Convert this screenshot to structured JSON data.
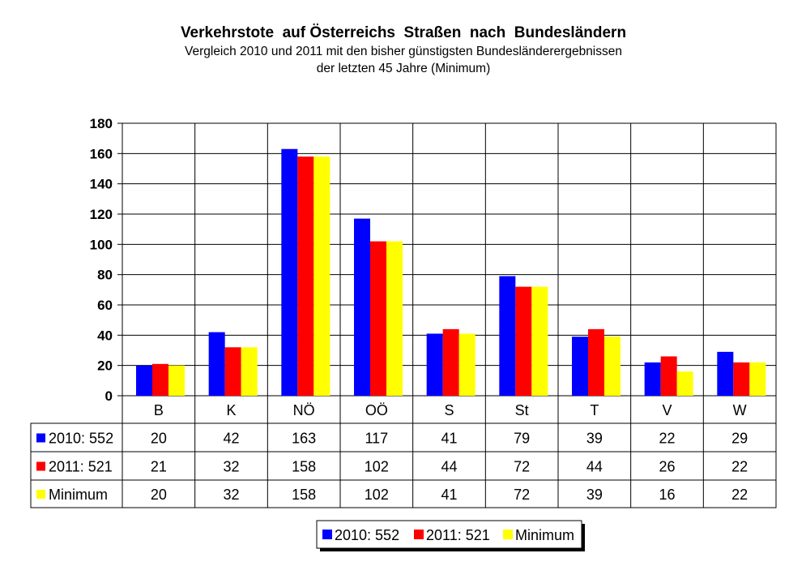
{
  "chart_data": {
    "type": "bar",
    "title": "Verkehrstote  auf Österreichs  Straßen  nach  Bundesländern",
    "subtitle_lines": [
      "Vergleich 2010 und 2011 mit den bisher günstigsten Bundesländerergebnissen",
      "der letzten 45 Jahre (Minimum)"
    ],
    "categories": [
      "B",
      "K",
      "NÖ",
      "OÖ",
      "S",
      "St",
      "T",
      "V",
      "W"
    ],
    "series": [
      {
        "name": "2010: 552",
        "color": "#0000FF",
        "values": [
          20,
          42,
          163,
          117,
          41,
          79,
          39,
          22,
          29
        ]
      },
      {
        "name": "2011: 521",
        "color": "#FF0000",
        "values": [
          21,
          32,
          158,
          102,
          44,
          72,
          44,
          26,
          22
        ]
      },
      {
        "name": "Minimum",
        "color": "#FFFF00",
        "values": [
          20,
          32,
          158,
          102,
          41,
          72,
          39,
          16,
          22
        ]
      }
    ],
    "ylim": [
      0,
      180
    ],
    "yticks": [
      0,
      20,
      40,
      60,
      80,
      100,
      120,
      140,
      160,
      180
    ],
    "grid": true,
    "data_table": true,
    "legend_placement": "bottom"
  }
}
